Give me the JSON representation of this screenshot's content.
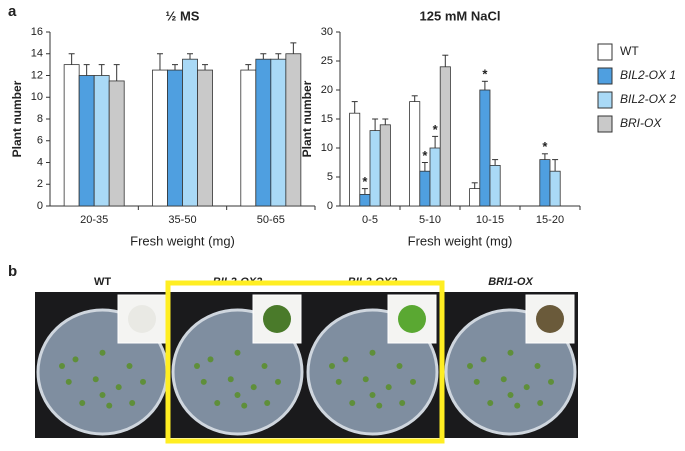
{
  "panel_labels": [
    "a",
    "b"
  ],
  "chart_data": [
    {
      "type": "bar",
      "title": "½ MS",
      "y_label": "Plant number",
      "x_label": "Fresh weight (mg)",
      "categories": [
        "20-35",
        "35-50",
        "50-65"
      ],
      "ylim": [
        0,
        16
      ],
      "yticks": [
        0,
        2,
        4,
        6,
        8,
        10,
        12,
        14,
        16
      ],
      "grid": false,
      "legend": false,
      "series": [
        {
          "color": "#ffffff",
          "values": [
            13,
            12.5,
            12.5
          ],
          "errors": [
            1,
            1.5,
            0.5
          ]
        },
        {
          "color": "#4f9fe0",
          "values": [
            12,
            12.5,
            13.5
          ],
          "errors": [
            1,
            0.5,
            0.5
          ]
        },
        {
          "color": "#a9d9f6",
          "values": [
            12,
            13.5,
            13.5
          ],
          "errors": [
            1,
            0.5,
            0.5
          ]
        },
        {
          "color": "#c9c9c9",
          "values": [
            11.5,
            12.5,
            14
          ],
          "errors": [
            1.5,
            0.5,
            1
          ]
        }
      ]
    },
    {
      "type": "bar",
      "title": "125 mM NaCl",
      "y_label": "Plant number",
      "x_label": "Fresh weight (mg)",
      "categories": [
        "0-5",
        "5-10",
        "10-15",
        "15-20"
      ],
      "ylim": [
        0,
        30
      ],
      "yticks": [
        0,
        5,
        10,
        15,
        20,
        25,
        30
      ],
      "grid": false,
      "legend": true,
      "series": [
        {
          "name": "WT",
          "color": "#ffffff",
          "values": [
            16,
            18,
            3,
            0
          ],
          "errors": [
            2,
            1,
            1,
            0
          ],
          "marks": [
            null,
            null,
            null,
            null
          ]
        },
        {
          "name": "BIL2-OX 1",
          "color": "#4f9fe0",
          "values": [
            2,
            6,
            20,
            8
          ],
          "errors": [
            1,
            1.5,
            1.5,
            1
          ],
          "marks": [
            "*",
            "*",
            "*",
            "*"
          ]
        },
        {
          "name": "BIL2-OX 2",
          "color": "#a9d9f6",
          "values": [
            13,
            10,
            7,
            6
          ],
          "errors": [
            2,
            2,
            1,
            2
          ],
          "marks": [
            null,
            "*",
            null,
            null
          ]
        },
        {
          "name": "BRI-OX",
          "color": "#c9c9c9",
          "values": [
            14,
            24,
            0,
            0
          ],
          "errors": [
            1,
            2,
            0,
            0
          ],
          "marks": [
            null,
            null,
            null,
            null
          ]
        }
      ]
    }
  ],
  "photos": {
    "labels": [
      "WT",
      "BIL2-OX2",
      "BIL2-OX3",
      "BRI1-OX"
    ]
  }
}
